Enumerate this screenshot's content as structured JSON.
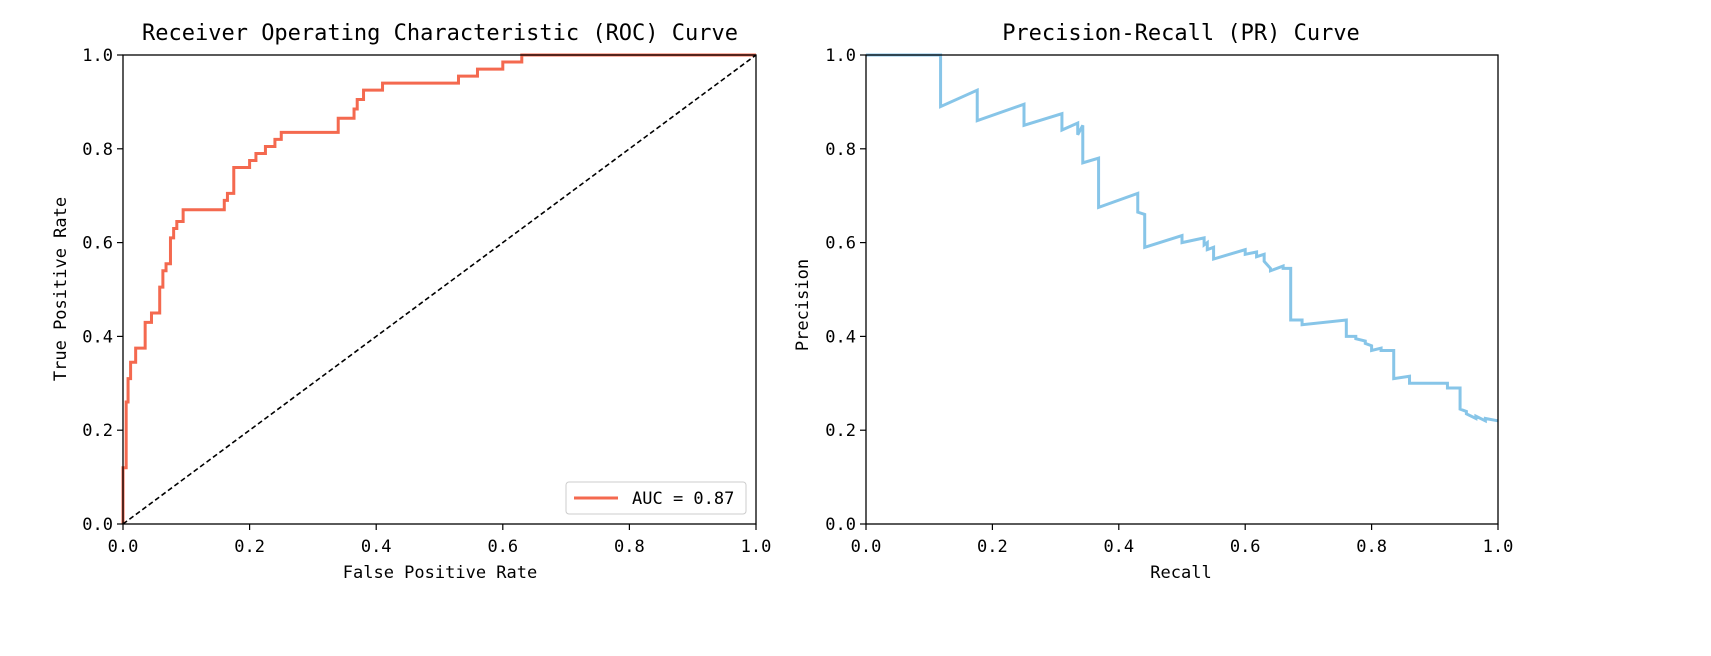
{
  "chart_data": [
    {
      "type": "line",
      "title": "Receiver Operating Characteristic (ROC) Curve",
      "xlabel": "False Positive Rate",
      "ylabel": "True Positive Rate",
      "xlim": [
        0.0,
        1.0
      ],
      "ylim": [
        0.0,
        1.0
      ],
      "xticks": [
        "0.0",
        "0.2",
        "0.4",
        "0.6",
        "0.8",
        "1.0"
      ],
      "yticks": [
        "0.0",
        "0.2",
        "0.4",
        "0.6",
        "0.8",
        "1.0"
      ],
      "grid": false,
      "legend_position": "lower-right",
      "series": [
        {
          "name": "AUC = 0.87",
          "color": "#f4694f",
          "style": "solid",
          "x": [
            0.0,
            0.0,
            0.005,
            0.005,
            0.008,
            0.008,
            0.012,
            0.012,
            0.02,
            0.02,
            0.035,
            0.035,
            0.045,
            0.045,
            0.058,
            0.058,
            0.063,
            0.063,
            0.068,
            0.068,
            0.075,
            0.075,
            0.08,
            0.08,
            0.085,
            0.085,
            0.095,
            0.095,
            0.16,
            0.16,
            0.165,
            0.165,
            0.175,
            0.175,
            0.2,
            0.2,
            0.21,
            0.21,
            0.225,
            0.225,
            0.24,
            0.24,
            0.25,
            0.25,
            0.34,
            0.34,
            0.365,
            0.365,
            0.37,
            0.37,
            0.38,
            0.38,
            0.41,
            0.41,
            0.53,
            0.53,
            0.56,
            0.56,
            0.6,
            0.6,
            0.63,
            0.63,
            1.0
          ],
          "y": [
            0.0,
            0.12,
            0.12,
            0.26,
            0.26,
            0.31,
            0.31,
            0.345,
            0.345,
            0.375,
            0.375,
            0.43,
            0.43,
            0.45,
            0.45,
            0.505,
            0.505,
            0.54,
            0.54,
            0.555,
            0.555,
            0.61,
            0.61,
            0.63,
            0.63,
            0.645,
            0.645,
            0.67,
            0.67,
            0.69,
            0.69,
            0.705,
            0.705,
            0.76,
            0.76,
            0.775,
            0.775,
            0.79,
            0.79,
            0.805,
            0.805,
            0.82,
            0.82,
            0.835,
            0.835,
            0.865,
            0.865,
            0.885,
            0.885,
            0.905,
            0.905,
            0.925,
            0.925,
            0.94,
            0.94,
            0.955,
            0.955,
            0.97,
            0.97,
            0.985,
            0.985,
            1.0,
            1.0
          ]
        },
        {
          "name": "",
          "color": "#000000",
          "style": "dashed",
          "x": [
            0.0,
            1.0
          ],
          "y": [
            0.0,
            1.0
          ]
        }
      ]
    },
    {
      "type": "line",
      "title": "Precision-Recall (PR) Curve",
      "xlabel": "Recall",
      "ylabel": "Precision",
      "xlim": [
        0.0,
        1.0
      ],
      "ylim": [
        0.0,
        1.0
      ],
      "xticks": [
        "0.0",
        "0.2",
        "0.4",
        "0.6",
        "0.8",
        "1.0"
      ],
      "yticks": [
        "0.0",
        "0.2",
        "0.4",
        "0.6",
        "0.8",
        "1.0"
      ],
      "grid": false,
      "series": [
        {
          "name": "",
          "color": "#87c5e8",
          "style": "solid",
          "x": [
            0.0,
            0.118,
            0.118,
            0.176,
            0.176,
            0.25,
            0.25,
            0.31,
            0.31,
            0.335,
            0.335,
            0.343,
            0.343,
            0.368,
            0.368,
            0.43,
            0.43,
            0.441,
            0.441,
            0.5,
            0.5,
            0.535,
            0.535,
            0.54,
            0.54,
            0.55,
            0.55,
            0.6,
            0.6,
            0.618,
            0.618,
            0.63,
            0.63,
            0.64,
            0.64,
            0.66,
            0.66,
            0.672,
            0.672,
            0.69,
            0.69,
            0.76,
            0.76,
            0.775,
            0.775,
            0.79,
            0.79,
            0.8,
            0.8,
            0.815,
            0.815,
            0.835,
            0.835,
            0.86,
            0.86,
            0.92,
            0.92,
            0.94,
            0.94,
            0.95,
            0.95,
            0.965,
            0.965,
            0.98,
            0.98,
            1.0
          ],
          "y": [
            1.0,
            1.0,
            0.89,
            0.925,
            0.86,
            0.895,
            0.85,
            0.875,
            0.84,
            0.855,
            0.83,
            0.85,
            0.77,
            0.78,
            0.675,
            0.705,
            0.665,
            0.66,
            0.59,
            0.615,
            0.6,
            0.61,
            0.595,
            0.6,
            0.585,
            0.59,
            0.565,
            0.585,
            0.575,
            0.58,
            0.57,
            0.575,
            0.56,
            0.545,
            0.54,
            0.55,
            0.545,
            0.545,
            0.435,
            0.435,
            0.425,
            0.435,
            0.4,
            0.4,
            0.395,
            0.39,
            0.385,
            0.38,
            0.37,
            0.375,
            0.37,
            0.37,
            0.31,
            0.315,
            0.3,
            0.3,
            0.29,
            0.29,
            0.245,
            0.24,
            0.235,
            0.225,
            0.23,
            0.22,
            0.225,
            0.22
          ]
        }
      ]
    }
  ]
}
